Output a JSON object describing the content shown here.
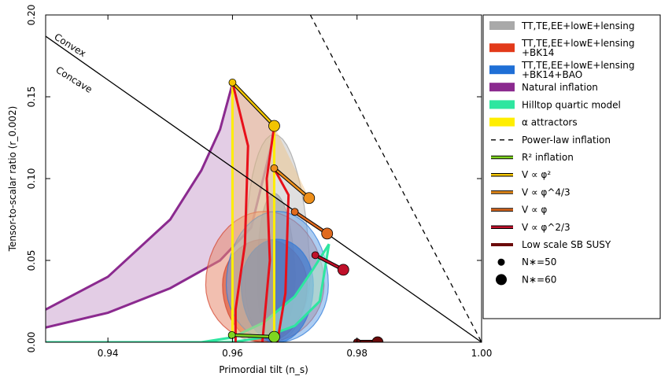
{
  "chart_data": {
    "type": "line",
    "xlabel": "Primordial tilt (n_s)",
    "ylabel": "Tensor-to-scalar ratio (r_0.002)",
    "xlim": [
      0.93,
      1.0
    ],
    "ylim": [
      0.0,
      0.2
    ],
    "xticks": [
      "0.94",
      "0.96",
      "0.98",
      "1.00"
    ],
    "xtick_values": [
      0.94,
      0.96,
      0.98,
      1.0
    ],
    "yticks": [
      "0.00",
      "0.05",
      "0.10",
      "0.15",
      "0.20"
    ],
    "ytick_values": [
      0.0,
      0.05,
      0.1,
      0.15,
      0.2
    ],
    "grid": false,
    "legend_position": "right, outside",
    "annotations": [
      "Convex",
      "Concave"
    ],
    "colors": {
      "planck_gray": "#a9a9a9",
      "bk14_red": "#e23a1a",
      "bao_blue": "#1f6fd6",
      "natural": "#8b2a8f",
      "hilltop": "#2ee6a0",
      "alpha": "#ffee00",
      "r2": "#7fd61f",
      "phi2": "#f2c400",
      "phi43": "#ee8f1a",
      "phi1": "#e06a1e",
      "phi23": "#c0102a",
      "susy": "#6b0a0a"
    },
    "legend": [
      {
        "label_lines": [
          "TT,TE,EE+lowE+lensing"
        ],
        "kind": "patch",
        "color": "#a9a9a9"
      },
      {
        "label_lines": [
          "TT,TE,EE+lowE+lensing",
          "+BK14"
        ],
        "kind": "patch",
        "color": "#e23a1a"
      },
      {
        "label_lines": [
          "TT,TE,EE+lowE+lensing",
          "+BK14+BAO"
        ],
        "kind": "patch",
        "color": "#1f6fd6"
      },
      {
        "label_lines": [
          "Natural inflation"
        ],
        "kind": "patch",
        "color": "#8b2a8f"
      },
      {
        "label_lines": [
          "Hilltop quartic model"
        ],
        "kind": "patch",
        "color": "#2ee6a0"
      },
      {
        "label_lines": [
          "α attractors"
        ],
        "kind": "patch",
        "color": "#ffee00"
      },
      {
        "label_lines": [
          "Power-law inflation"
        ],
        "kind": "dashed",
        "color": "#000000"
      },
      {
        "label_lines": [
          "R² inflation"
        ],
        "kind": "line",
        "color": "#7fd61f"
      },
      {
        "label_lines": [
          "V ∝ φ²"
        ],
        "kind": "line",
        "color": "#f2c400"
      },
      {
        "label_lines": [
          "V ∝ φ^4/3"
        ],
        "kind": "line",
        "color": "#ee8f1a"
      },
      {
        "label_lines": [
          "V ∝ φ"
        ],
        "kind": "line",
        "color": "#e06a1e"
      },
      {
        "label_lines": [
          "V ∝ φ^2/3"
        ],
        "kind": "line",
        "color": "#c0102a"
      },
      {
        "label_lines": [
          "Low scale SB SUSY"
        ],
        "kind": "thickline",
        "color": "#6b0a0a"
      },
      {
        "label_lines": [
          "N∗=50"
        ],
        "kind": "dot-small",
        "color": "#000000"
      },
      {
        "label_lines": [
          "N∗=60"
        ],
        "kind": "dot-large",
        "color": "#000000"
      }
    ],
    "series": [
      {
        "name": "Power-law inflation",
        "kind": "dashed",
        "x": [
          0.9725,
          1.0
        ],
        "y": [
          0.2,
          0.0
        ]
      },
      {
        "name": "Convex / Concave boundary",
        "kind": "line",
        "x": [
          0.93,
          1.0
        ],
        "y": [
          0.187,
          0.0
        ]
      },
      {
        "name": "R² inflation",
        "x": [
          0.9599,
          0.9667
        ],
        "y": [
          0.0044,
          0.0033
        ],
        "points": [
          "N∗=50",
          "N∗=60"
        ]
      },
      {
        "name": "V ∝ φ²",
        "x": [
          0.96,
          0.9667
        ],
        "y": [
          0.1587,
          0.1322
        ],
        "points": [
          "N∗=50",
          "N∗=60"
        ]
      },
      {
        "name": "V ∝ φ^4/3",
        "x": [
          0.9667,
          0.9723
        ],
        "y": [
          0.1063,
          0.0881
        ],
        "points": [
          "N∗=50",
          "N∗=60"
        ]
      },
      {
        "name": "V ∝ φ",
        "x": [
          0.97,
          0.9752
        ],
        "y": [
          0.0797,
          0.0664
        ],
        "points": [
          "N∗=50",
          "N∗=60"
        ]
      },
      {
        "name": "V ∝ φ^2/3",
        "x": [
          0.9733,
          0.9778
        ],
        "y": [
          0.0532,
          0.0443
        ],
        "points": [
          "N∗=50",
          "N∗=60"
        ]
      },
      {
        "name": "Low scale SB SUSY",
        "x": [
          0.98,
          0.9833
        ],
        "y": [
          0.0,
          0.0
        ],
        "points": [
          "N∗=50",
          "N∗=60"
        ]
      },
      {
        "name": "Natural inflation",
        "kind": "band",
        "upper": {
          "x": [
            0.93,
            0.94,
            0.95,
            0.955,
            0.958,
            0.96
          ],
          "y": [
            0.02,
            0.04,
            0.075,
            0.105,
            0.13,
            0.158
          ]
        },
        "lower": {
          "x": [
            0.93,
            0.94,
            0.95,
            0.958,
            0.963,
            0.967
          ],
          "y": [
            0.009,
            0.018,
            0.033,
            0.05,
            0.07,
            0.132
          ]
        }
      },
      {
        "name": "Hilltop quartic model",
        "kind": "band",
        "upper": {
          "x": [
            0.93,
            0.955,
            0.96,
            0.965,
            0.97,
            0.973,
            0.9755
          ],
          "y": [
            0.0,
            0.0,
            0.003,
            0.012,
            0.028,
            0.045,
            0.06
          ]
        },
        "lower": {
          "x": [
            0.93,
            0.96,
            0.965,
            0.97,
            0.974,
            0.9755
          ],
          "y": [
            0.0,
            0.0,
            0.003,
            0.01,
            0.025,
            0.06
          ]
        }
      },
      {
        "name": "α attractors",
        "kind": "band",
        "x_range": [
          0.96,
          0.9667
        ],
        "y_top": [
          0.1587,
          0.1322
        ],
        "y_bottom": [
          0.0044,
          0.0033
        ]
      },
      {
        "name": "TT,TE,EE+lowE+lensing",
        "kind": "contour",
        "center": [
          0.9667,
          0.04
        ],
        "levels": [
          {
            "rx": 0.0052,
            "ry_top": 0.087,
            "ry_bottom": 0.04,
            "shift": 0.0006
          },
          {
            "rx": 0.003,
            "ry_top": 0.051,
            "ry_bottom": 0.04,
            "shift": 0.0004
          }
        ]
      },
      {
        "name": "TT,TE,EE+lowE+lensing+BK14",
        "kind": "contour",
        "center": [
          0.9652,
          0.035
        ],
        "levels": [
          {
            "rx": 0.0095,
            "ry_top": 0.045,
            "ry_bottom": 0.035,
            "shift": 0.0
          },
          {
            "rx": 0.0068,
            "ry_top": 0.028,
            "ry_bottom": 0.035,
            "shift": 0.0
          }
        ]
      },
      {
        "name": "TT,TE,EE+lowE+lensing+BK14+BAO",
        "kind": "contour",
        "center": [
          0.9672,
          0.035
        ],
        "levels": [
          {
            "rx": 0.0082,
            "ry_top": 0.045,
            "ry_bottom": 0.035,
            "shift": 0.0
          },
          {
            "rx": 0.0058,
            "ry_top": 0.028,
            "ry_bottom": 0.035,
            "shift": 0.0
          }
        ]
      }
    ]
  }
}
